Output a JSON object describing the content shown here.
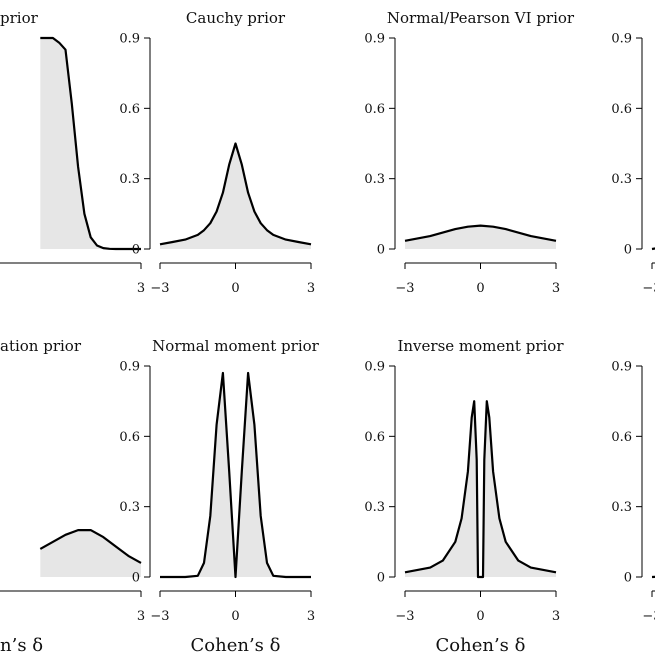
{
  "chart_data": [
    {
      "type": "area",
      "title": "prior",
      "xlabel": "",
      "xlim": [
        -3,
        3
      ],
      "ylim": [
        0,
        0.9
      ],
      "xticks": [
        "",
        "3"
      ],
      "yticks": [
        "",
        "",
        "",
        ""
      ],
      "series": [
        {
          "x": [
            -1,
            -0.5,
            -0.25,
            0,
            0.25,
            0.5,
            0.75,
            1,
            1.25,
            1.5,
            1.75,
            2,
            2.5,
            3
          ],
          "y": [
            0.9,
            0.9,
            0.88,
            0.85,
            0.62,
            0.35,
            0.15,
            0.05,
            0.015,
            0.004,
            0.001,
            0,
            0,
            0
          ]
        }
      ]
    },
    {
      "type": "area",
      "title": "Cauchy prior",
      "xlabel": "",
      "xlim": [
        -3,
        3
      ],
      "ylim": [
        0,
        0.9
      ],
      "xticks": [
        "−3",
        "0",
        "3"
      ],
      "yticks": [
        "0",
        "0.3",
        "0.6",
        "0.9"
      ],
      "series": [
        {
          "x": [
            -3,
            -2.5,
            -2,
            -1.5,
            -1.25,
            -1,
            -0.75,
            -0.5,
            -0.25,
            0,
            0.25,
            0.5,
            0.75,
            1,
            1.25,
            1.5,
            2,
            2.5,
            3
          ],
          "y": [
            0.02,
            0.03,
            0.04,
            0.06,
            0.08,
            0.11,
            0.16,
            0.24,
            0.36,
            0.45,
            0.36,
            0.24,
            0.16,
            0.11,
            0.08,
            0.06,
            0.04,
            0.03,
            0.02
          ]
        }
      ]
    },
    {
      "type": "area",
      "title": "Normal/Pearson VI prior",
      "xlabel": "",
      "xlim": [
        -3,
        3
      ],
      "ylim": [
        0,
        0.9
      ],
      "xticks": [
        "−3",
        "0",
        "3"
      ],
      "yticks": [
        "0",
        "0.3",
        "0.6",
        "0.9"
      ],
      "series": [
        {
          "x": [
            -3,
            -2,
            -1,
            -0.5,
            0,
            0.5,
            1,
            2,
            3
          ],
          "y": [
            0.035,
            0.055,
            0.085,
            0.095,
            0.1,
            0.095,
            0.085,
            0.055,
            0.035
          ]
        }
      ]
    },
    {
      "type": "area",
      "title": "",
      "xlabel": "",
      "xlim": [
        -3,
        3
      ],
      "ylim": [
        0,
        0.9
      ],
      "xticks": [
        "−3"
      ],
      "yticks": [
        "0",
        "0.3",
        "0.6",
        "0.9"
      ],
      "series": [
        {
          "x": [
            -3,
            -2.8,
            -2.5,
            -2.2,
            -2
          ],
          "y": [
            0,
            0.004,
            0.006,
            0.008,
            0.01
          ]
        }
      ]
    },
    {
      "type": "area",
      "title": "ation prior",
      "xlabel": "n’s δ",
      "xlim": [
        -3,
        3
      ],
      "ylim": [
        0,
        0.9
      ],
      "xticks": [
        "3"
      ],
      "yticks": [
        "",
        "",
        "",
        ""
      ],
      "series": [
        {
          "x": [
            -1,
            0,
            0.5,
            1,
            1.5,
            2,
            2.5,
            3
          ],
          "y": [
            0.12,
            0.18,
            0.2,
            0.2,
            0.17,
            0.13,
            0.09,
            0.06
          ]
        }
      ]
    },
    {
      "type": "area",
      "title": "Normal moment prior",
      "xlabel": "Cohen’s δ",
      "xlim": [
        -3,
        3
      ],
      "ylim": [
        0,
        0.9
      ],
      "xticks": [
        "−3",
        "0",
        "3"
      ],
      "yticks": [
        "0",
        "0.3",
        "0.6",
        "0.9"
      ],
      "series": [
        {
          "x": [
            -3,
            -2,
            -1.5,
            -1.25,
            -1,
            -0.75,
            -0.5,
            -0.25,
            0,
            0.25,
            0.5,
            0.75,
            1,
            1.25,
            1.5,
            2,
            3
          ],
          "y": [
            0,
            0,
            0.005,
            0.06,
            0.26,
            0.65,
            0.87,
            0.45,
            0,
            0.45,
            0.87,
            0.65,
            0.26,
            0.06,
            0.005,
            0,
            0
          ]
        }
      ]
    },
    {
      "type": "area",
      "title": "Inverse moment prior",
      "xlabel": "Cohen’s δ",
      "xlim": [
        -3,
        3
      ],
      "ylim": [
        0,
        0.9
      ],
      "xticks": [
        "−3",
        "0",
        "3"
      ],
      "yticks": [
        "0",
        "0.3",
        "0.6",
        "0.9"
      ],
      "series": [
        {
          "x": [
            -3,
            -2,
            -1.5,
            -1,
            -0.75,
            -0.5,
            -0.35,
            -0.25,
            -0.15,
            -0.1,
            0,
            0.1,
            0.15,
            0.25,
            0.35,
            0.5,
            0.75,
            1,
            1.5,
            2,
            3
          ],
          "y": [
            0.02,
            0.04,
            0.07,
            0.15,
            0.25,
            0.45,
            0.68,
            0.75,
            0.5,
            0,
            0,
            0,
            0.5,
            0.75,
            0.68,
            0.45,
            0.25,
            0.15,
            0.07,
            0.04,
            0.02
          ]
        }
      ]
    },
    {
      "type": "area",
      "title": "",
      "xlabel": "",
      "xlim": [
        -3,
        3
      ],
      "ylim": [
        0,
        0.9
      ],
      "xticks": [
        "−3"
      ],
      "yticks": [
        "0",
        "0.3",
        "0.6",
        "0.9"
      ],
      "series": [
        {
          "x": [
            -3,
            -2.8,
            -2.5,
            -2.2,
            -2
          ],
          "y": [
            0,
            0.001,
            0.002,
            0.003,
            0.004
          ]
        }
      ]
    }
  ]
}
